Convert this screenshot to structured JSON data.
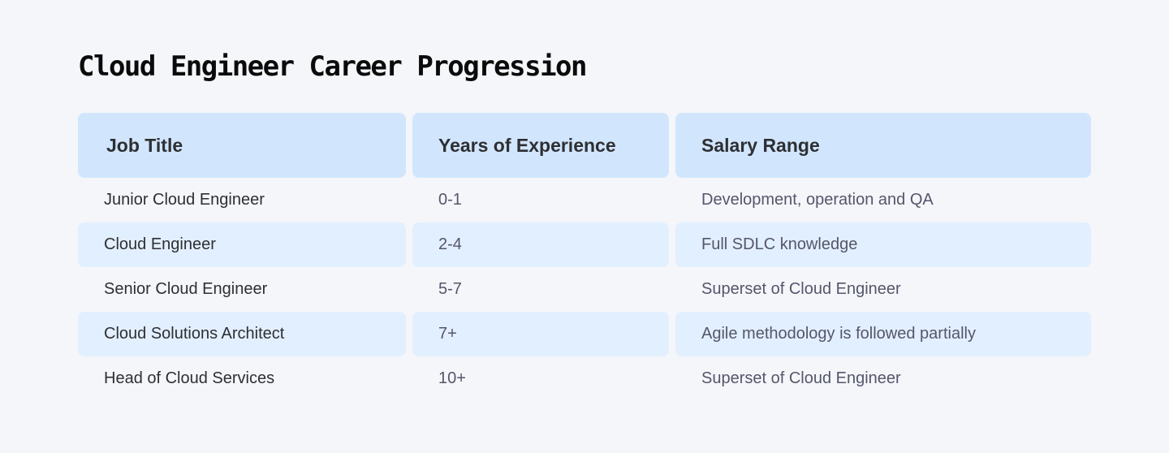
{
  "page": {
    "title": "Cloud Engineer Career Progression"
  },
  "table": {
    "headers": [
      "Job Title",
      "Years of Experience",
      "Salary Range"
    ],
    "rows": [
      [
        "Junior Cloud Engineer",
        "0-1",
        "Development, operation and QA"
      ],
      [
        "Cloud Engineer",
        "2-4",
        "Full SDLC knowledge"
      ],
      [
        "Senior Cloud Engineer",
        "5-7",
        "Superset of Cloud Engineer"
      ],
      [
        "Cloud Solutions Architect",
        "7+",
        "Agile methodology is followed partially"
      ],
      [
        "Head of Cloud Services",
        "10+",
        "Superset of Cloud Engineer"
      ]
    ]
  },
  "colors": {
    "background": "#f4f6fa",
    "header_fill": "#d1e6fd",
    "stripe_fill": "#e2effe"
  }
}
